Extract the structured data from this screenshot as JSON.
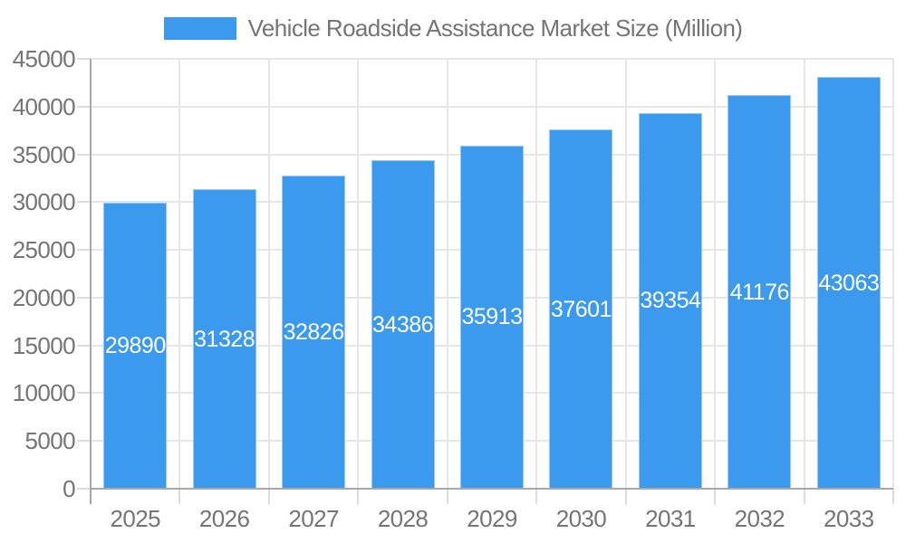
{
  "chart_data": {
    "type": "bar",
    "title": "Vehicle Roadside Assistance Market Size (Million)",
    "legend_position": "top",
    "categories": [
      "2025",
      "2026",
      "2027",
      "2028",
      "2029",
      "2030",
      "2031",
      "2032",
      "2033"
    ],
    "values": [
      29890,
      31328,
      32826,
      34386,
      35913,
      37601,
      39354,
      41176,
      43063
    ],
    "bar_labels": [
      "29890",
      "31328",
      "32826",
      "34386",
      "35913",
      "37601",
      "39354",
      "41176",
      "43063"
    ],
    "xlabel": "",
    "ylabel": "",
    "ylim": [
      0,
      45000
    ],
    "ytick_step": 5000,
    "ytick_labels": [
      "0",
      "5000",
      "10000",
      "15000",
      "20000",
      "25000",
      "30000",
      "35000",
      "40000",
      "45000"
    ],
    "grid": true,
    "colors": {
      "bar": "#3B99EE",
      "bar_border": "#9CC7F2",
      "bar_label": "#FFFFFF",
      "grid": "#E6E6E6",
      "tick": "#DCDCDC",
      "axis": "#A8A8A8",
      "axis_text": "#757575",
      "legend_text": "#757575",
      "background": "#FFFFFF"
    }
  }
}
